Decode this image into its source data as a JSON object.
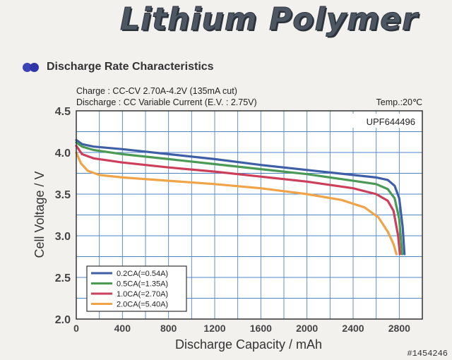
{
  "header": {
    "title": "Lithium Polymer"
  },
  "section": {
    "label": "Discharge Rate Characteristics"
  },
  "conditions": {
    "charge": "Charge : CC-CV 2.70A-4.2V (135mA cut)",
    "discharge": "Discharge : CC Variable Current (E.V. : 2.75V)",
    "temp": "Temp.:20℃"
  },
  "watermark": "#1454246",
  "chart_data": {
    "type": "line",
    "model_label": "UPF644496",
    "xlabel": "Discharge Capacity / mAh",
    "ylabel": "Cell Voltage / V",
    "xlim": [
      0,
      3000
    ],
    "ylim": [
      2.0,
      4.5
    ],
    "x_ticks": [
      "0",
      "400",
      "800",
      "1200",
      "1600",
      "2000",
      "2400",
      "2800"
    ],
    "y_ticks": [
      "2.0",
      "2.5",
      "3.0",
      "3.5",
      "4.0",
      "4.5"
    ],
    "grid": true,
    "legend_position": "bottom-left",
    "series": [
      {
        "name": "0.2CA(=0.54A)",
        "color": "#3e5fa6",
        "points": [
          [
            0,
            4.15
          ],
          [
            50,
            4.1
          ],
          [
            150,
            4.07
          ],
          [
            400,
            4.04
          ],
          [
            800,
            3.98
          ],
          [
            1200,
            3.92
          ],
          [
            1600,
            3.85
          ],
          [
            2000,
            3.79
          ],
          [
            2400,
            3.73
          ],
          [
            2600,
            3.7
          ],
          [
            2700,
            3.67
          ],
          [
            2760,
            3.6
          ],
          [
            2800,
            3.45
          ],
          [
            2830,
            3.1
          ],
          [
            2845,
            2.78
          ]
        ]
      },
      {
        "name": "0.5CA(=1.35A)",
        "color": "#4a9a55",
        "points": [
          [
            0,
            4.12
          ],
          [
            50,
            4.07
          ],
          [
            150,
            4.03
          ],
          [
            400,
            3.98
          ],
          [
            800,
            3.92
          ],
          [
            1200,
            3.86
          ],
          [
            1600,
            3.8
          ],
          [
            2000,
            3.74
          ],
          [
            2400,
            3.66
          ],
          [
            2600,
            3.62
          ],
          [
            2700,
            3.56
          ],
          [
            2760,
            3.45
          ],
          [
            2800,
            3.2
          ],
          [
            2825,
            2.78
          ]
        ]
      },
      {
        "name": "1.0CA(=2.70A)",
        "color": "#cc3f5a",
        "points": [
          [
            0,
            4.08
          ],
          [
            50,
            3.98
          ],
          [
            150,
            3.93
          ],
          [
            400,
            3.88
          ],
          [
            800,
            3.82
          ],
          [
            1200,
            3.77
          ],
          [
            1600,
            3.71
          ],
          [
            2000,
            3.65
          ],
          [
            2400,
            3.57
          ],
          [
            2600,
            3.5
          ],
          [
            2700,
            3.42
          ],
          [
            2750,
            3.3
          ],
          [
            2790,
            3.0
          ],
          [
            2805,
            2.78
          ]
        ]
      },
      {
        "name": "2.0CA(=5.40A)",
        "color": "#f0a347",
        "points": [
          [
            0,
            4.0
          ],
          [
            40,
            3.87
          ],
          [
            100,
            3.78
          ],
          [
            200,
            3.73
          ],
          [
            400,
            3.7
          ],
          [
            800,
            3.66
          ],
          [
            1200,
            3.62
          ],
          [
            1600,
            3.57
          ],
          [
            2000,
            3.5
          ],
          [
            2300,
            3.43
          ],
          [
            2500,
            3.34
          ],
          [
            2620,
            3.22
          ],
          [
            2700,
            3.05
          ],
          [
            2750,
            2.9
          ],
          [
            2775,
            2.78
          ]
        ]
      }
    ]
  }
}
